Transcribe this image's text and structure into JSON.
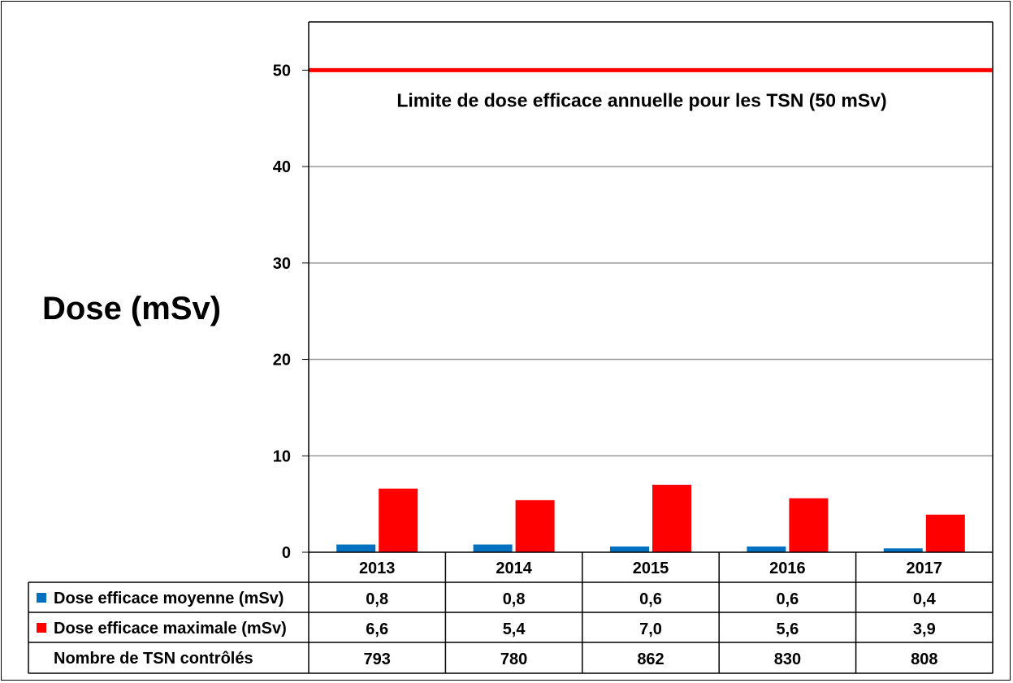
{
  "chart_data": {
    "type": "bar",
    "ylabel": "Dose (mSv)",
    "ylim": [
      0,
      55
    ],
    "yticks": [
      0,
      10,
      20,
      30,
      40,
      50
    ],
    "grid": true,
    "categories": [
      "2013",
      "2014",
      "2015",
      "2016",
      "2017"
    ],
    "series": [
      {
        "name": "Dose efficace moyenne (mSv)",
        "color": "#0070C0",
        "values": [
          0.8,
          0.8,
          0.6,
          0.6,
          0.4
        ],
        "labels": [
          "0,8",
          "0,8",
          "0,6",
          "0,6",
          "0,4"
        ]
      },
      {
        "name": "Dose efficace maximale (mSv)",
        "color": "#FF0000",
        "values": [
          6.6,
          5.4,
          7.0,
          5.6,
          3.9
        ],
        "labels": [
          "6,6",
          "5,4",
          "7,0",
          "5,6",
          "3,9"
        ]
      }
    ],
    "table_extra_row": {
      "name": "Nombre de TSN contrôlés",
      "values": [
        "793",
        "780",
        "862",
        "830",
        "808"
      ]
    },
    "limit_line": {
      "value": 50,
      "label": "Limite de dose efficace annuelle pour les TSN (50 mSv)",
      "color": "#FF0000"
    }
  }
}
